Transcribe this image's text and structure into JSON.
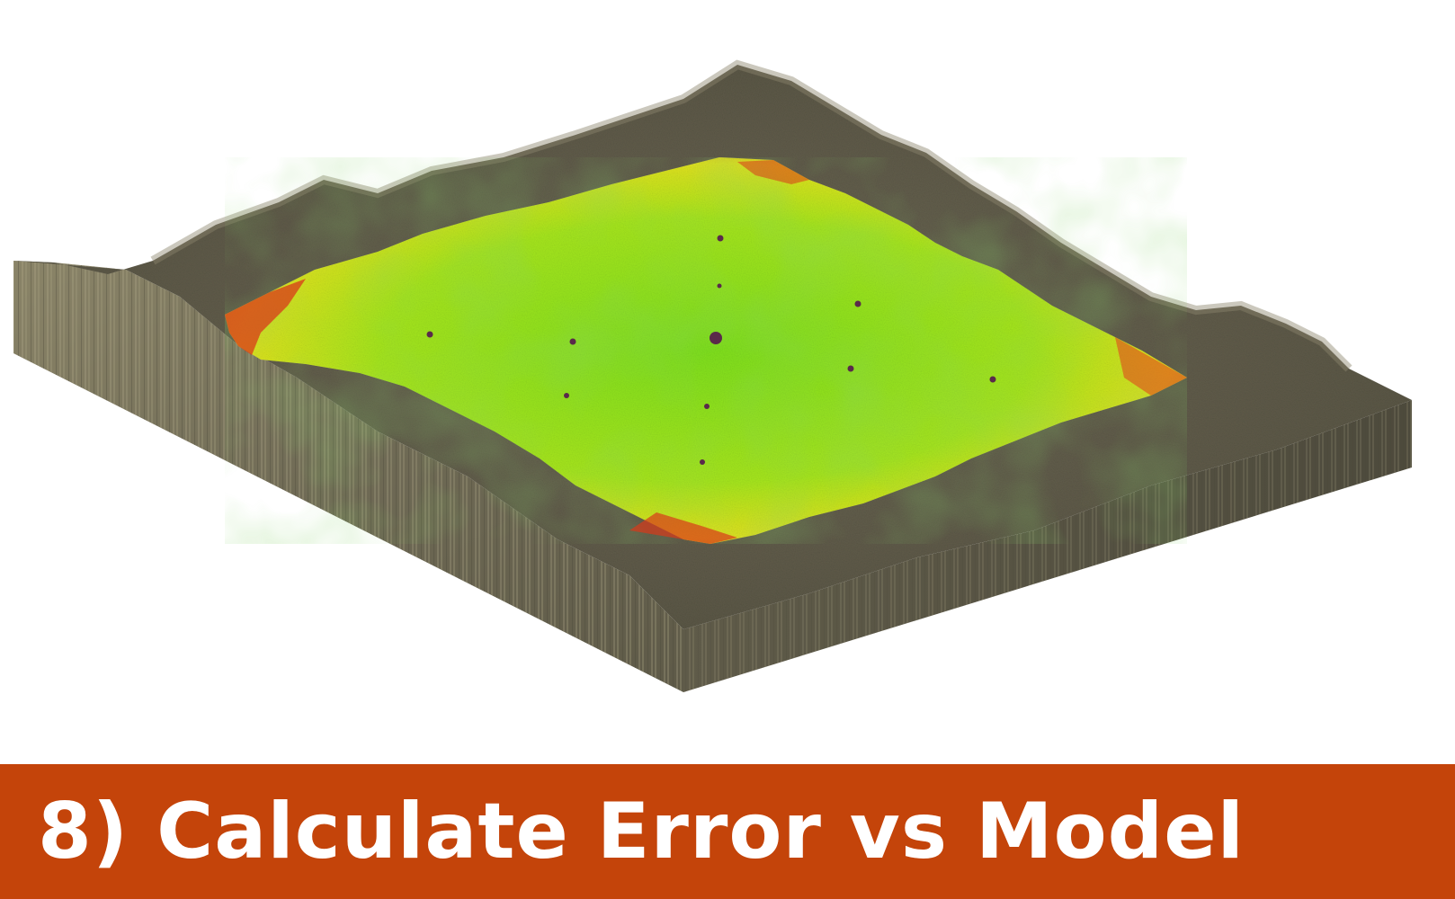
{
  "caption": {
    "text": "8) Calculate Error vs Model",
    "bar_color": "#c4440a",
    "text_color": "#ffffff"
  },
  "visualization": {
    "subject": "terrain-block-with-error-heatmap",
    "colors": {
      "terrain_top": "#5e5a48",
      "terrain_side": "#7a735c",
      "error_low": "#7be01e",
      "error_mid": "#e6e41a",
      "error_high": "#d93a1a",
      "marker": "#5a2a4a"
    }
  }
}
